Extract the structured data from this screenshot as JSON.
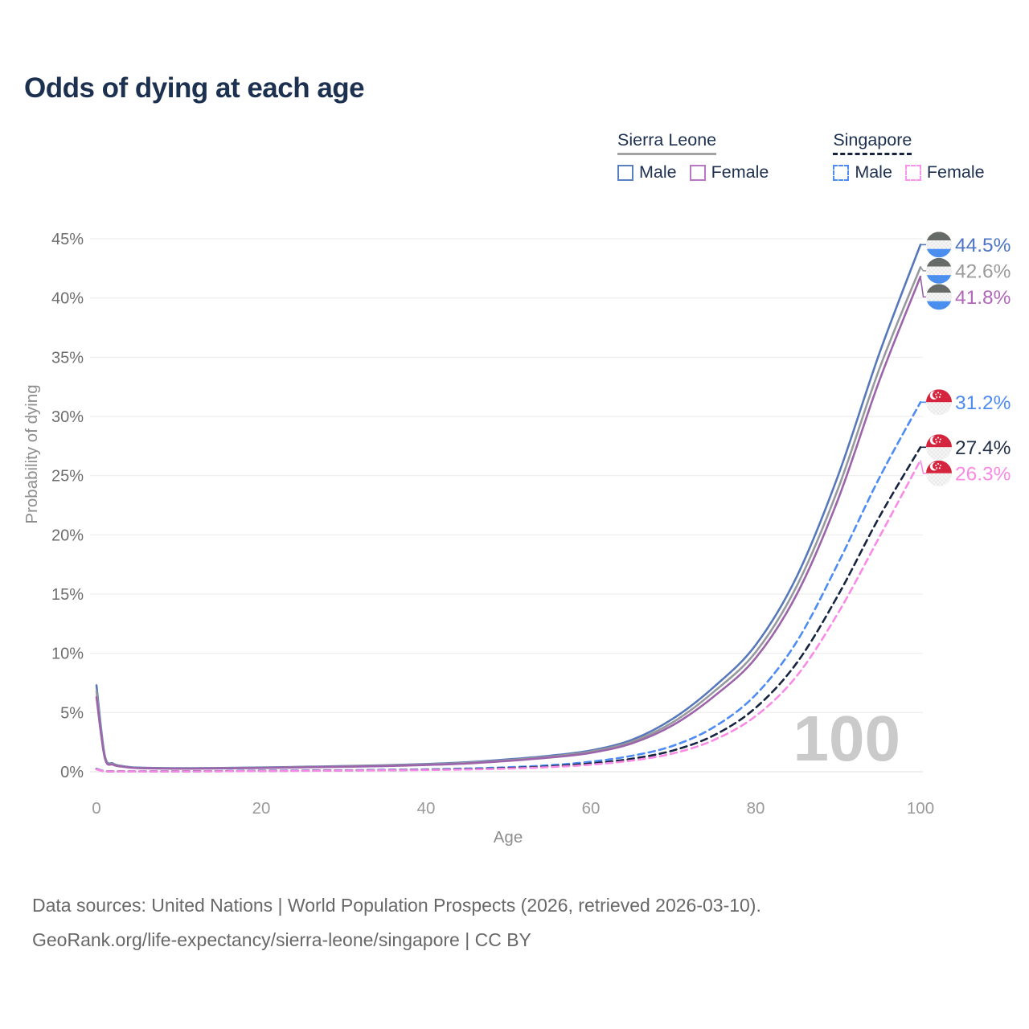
{
  "title": "Odds of dying at each age",
  "watermark": "100",
  "legend": {
    "groups": [
      {
        "name": "Sierra Leone",
        "line_style": "solid",
        "underline_color": "#a3a3a3",
        "items": [
          {
            "label": "Male",
            "color": "#5b80c0"
          },
          {
            "label": "Female",
            "color": "#b878c4"
          }
        ]
      },
      {
        "name": "Singapore",
        "line_style": "dashed",
        "underline_color": "#16243f",
        "items": [
          {
            "label": "Male",
            "color": "#4e8cf3"
          },
          {
            "label": "Female",
            "color": "#fb93ee"
          }
        ]
      }
    ]
  },
  "chart_data": {
    "type": "line",
    "xlabel": "Age",
    "ylabel": "Probability of dying",
    "xlim": [
      0,
      100
    ],
    "ylim": [
      0,
      45
    ],
    "xticks": [
      0,
      20,
      40,
      60,
      80,
      100
    ],
    "yticks": [
      0,
      5,
      10,
      15,
      20,
      25,
      30,
      35,
      40,
      45
    ],
    "grid": "horizontal",
    "legend_position": "top-right",
    "x": [
      0,
      1,
      2,
      3,
      5,
      10,
      15,
      20,
      25,
      30,
      35,
      40,
      45,
      50,
      55,
      60,
      65,
      70,
      75,
      80,
      85,
      90,
      95,
      100
    ],
    "series": [
      {
        "name": "Sierra Leone Male",
        "country": "Sierra Leone",
        "sex": "male",
        "style": "solid",
        "color": "#5678bb",
        "label_color": "#4b74c4",
        "flag": "sierra-leone",
        "end_label": "44.5%",
        "values": [
          7.3,
          1.4,
          0.7,
          0.5,
          0.35,
          0.3,
          0.32,
          0.36,
          0.42,
          0.48,
          0.55,
          0.65,
          0.8,
          1.05,
          1.35,
          1.8,
          2.7,
          4.5,
          7.2,
          10.7,
          16.5,
          25.0,
          35.3,
          44.5
        ]
      },
      {
        "name": "Sierra Leone Total",
        "country": "Sierra Leone",
        "sex": "total",
        "style": "solid",
        "color": "#97999c",
        "label_color": "#9b9b9b",
        "flag": "sierra-leone",
        "end_label": "42.6%",
        "values": [
          6.8,
          1.3,
          0.65,
          0.47,
          0.33,
          0.28,
          0.3,
          0.34,
          0.4,
          0.45,
          0.52,
          0.61,
          0.75,
          0.98,
          1.27,
          1.7,
          2.55,
          4.2,
          6.8,
          10.1,
          15.7,
          23.9,
          34.0,
          42.6
        ]
      },
      {
        "name": "Sierra Leone Female",
        "country": "Sierra Leone",
        "sex": "female",
        "style": "solid",
        "color": "#9c64aa",
        "label_color": "#b168ba",
        "flag": "sierra-leone",
        "end_label": "41.8%",
        "values": [
          6.3,
          1.2,
          0.6,
          0.44,
          0.31,
          0.26,
          0.28,
          0.32,
          0.37,
          0.42,
          0.48,
          0.57,
          0.7,
          0.92,
          1.2,
          1.6,
          2.4,
          3.95,
          6.4,
          9.6,
          15.0,
          23.0,
          33.0,
          41.8
        ]
      },
      {
        "name": "Singapore Male",
        "country": "Singapore",
        "sex": "male",
        "style": "dashed",
        "color": "#4e8cf3",
        "label_color": "#4e8cf3",
        "flag": "singapore",
        "end_label": "31.2%",
        "values": [
          0.25,
          0.05,
          0.04,
          0.03,
          0.03,
          0.04,
          0.06,
          0.09,
          0.11,
          0.13,
          0.16,
          0.2,
          0.27,
          0.38,
          0.55,
          0.85,
          1.35,
          2.2,
          3.8,
          6.5,
          11.0,
          17.6,
          24.8,
          31.2
        ]
      },
      {
        "name": "Singapore Total",
        "country": "Singapore",
        "sex": "total",
        "style": "dashed",
        "color": "#16243f",
        "label_color": "#22304a",
        "flag": "singapore",
        "end_label": "27.4%",
        "values": [
          0.22,
          0.04,
          0.03,
          0.03,
          0.02,
          0.03,
          0.05,
          0.07,
          0.09,
          0.11,
          0.13,
          0.17,
          0.22,
          0.31,
          0.45,
          0.7,
          1.1,
          1.8,
          3.1,
          5.4,
          9.2,
          14.9,
          21.5,
          27.4
        ]
      },
      {
        "name": "Singapore Female",
        "country": "Singapore",
        "sex": "female",
        "style": "dashed",
        "color": "#f98be7",
        "label_color": "#f98be7",
        "flag": "singapore",
        "end_label": "26.3%",
        "values": [
          0.2,
          0.04,
          0.03,
          0.02,
          0.02,
          0.03,
          0.04,
          0.06,
          0.08,
          0.1,
          0.12,
          0.15,
          0.19,
          0.27,
          0.39,
          0.6,
          0.95,
          1.55,
          2.7,
          4.7,
          8.1,
          13.4,
          19.8,
          26.3
        ]
      }
    ]
  },
  "footer": {
    "line1": "Data sources: United Nations | World Population Prospects (2026, retrieved 2026-03-10).",
    "line2": "GeoRank.org/life-expectancy/sierra-leone/singapore | CC BY"
  }
}
